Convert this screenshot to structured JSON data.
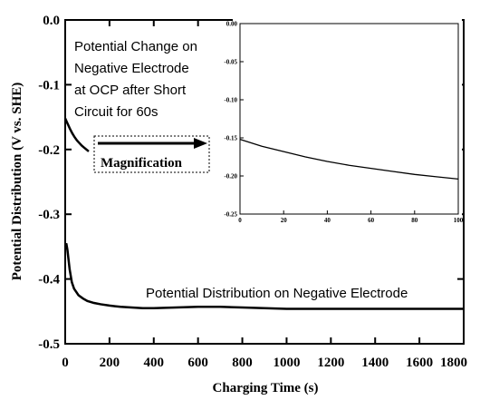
{
  "chart_data": [
    {
      "type": "line",
      "xlabel": "Charging Time (s)",
      "ylabel": "Potential Distribution (V vs. SHE)",
      "xlim": [
        0,
        1800
      ],
      "ylim": [
        -0.5,
        0.0
      ],
      "xticks": [
        "0",
        "200",
        "400",
        "600",
        "800",
        "1000",
        "1200",
        "1400",
        "1600",
        "1800"
      ],
      "yticks": [
        "0.0",
        "-0.1",
        "-0.2",
        "-0.3",
        "-0.4",
        "-0.5"
      ],
      "grid": false,
      "series": [
        {
          "name": "Potential Distribution on Negative Electrode",
          "x": [
            0,
            5,
            10,
            15,
            20,
            30,
            40,
            60,
            80,
            100,
            130,
            160,
            200,
            250,
            300,
            350,
            400,
            500,
            600,
            700,
            800,
            900,
            1000,
            1100,
            1200,
            1300,
            1400,
            1500,
            1600,
            1700,
            1800
          ],
          "y": [
            -0.35,
            -0.345,
            -0.355,
            -0.37,
            -0.385,
            -0.405,
            -0.415,
            -0.425,
            -0.43,
            -0.434,
            -0.437,
            -0.439,
            -0.441,
            -0.443,
            -0.444,
            -0.445,
            -0.445,
            -0.444,
            -0.443,
            -0.443,
            -0.444,
            -0.445,
            -0.446,
            -0.446,
            -0.446,
            -0.446,
            -0.446,
            -0.446,
            -0.446,
            -0.446,
            -0.446
          ]
        },
        {
          "name": "Potential Change on Negative Electrode at OCP after Short Circuit for 60s",
          "x": [
            0,
            10,
            20,
            30,
            40,
            50,
            60,
            70,
            80,
            90,
            100
          ],
          "y": [
            -0.152,
            -0.16,
            -0.168,
            -0.175,
            -0.181,
            -0.186,
            -0.19,
            -0.194,
            -0.197,
            -0.2,
            -0.203
          ]
        }
      ],
      "annotations": [
        "Potential Change on",
        "Negative Electrode",
        "at OCP after Short",
        "Circuit for 60s",
        "Magnification",
        "Potential Distribution on Negative Electrode"
      ]
    },
    {
      "type": "line",
      "xlim": [
        0,
        100
      ],
      "ylim": [
        -0.25,
        0.0
      ],
      "xticks": [
        "0",
        "20",
        "40",
        "60",
        "80",
        "100"
      ],
      "yticks": [
        "0.00",
        "-0.05",
        "-0.10",
        "-0.15",
        "-0.20",
        "-0.25"
      ],
      "grid": false,
      "series": [
        {
          "x": [
            0,
            10,
            20,
            30,
            40,
            50,
            60,
            70,
            80,
            90,
            100
          ],
          "y": [
            -0.152,
            -0.161,
            -0.168,
            -0.175,
            -0.181,
            -0.186,
            -0.19,
            -0.194,
            -0.198,
            -0.201,
            -0.204
          ]
        }
      ]
    }
  ]
}
